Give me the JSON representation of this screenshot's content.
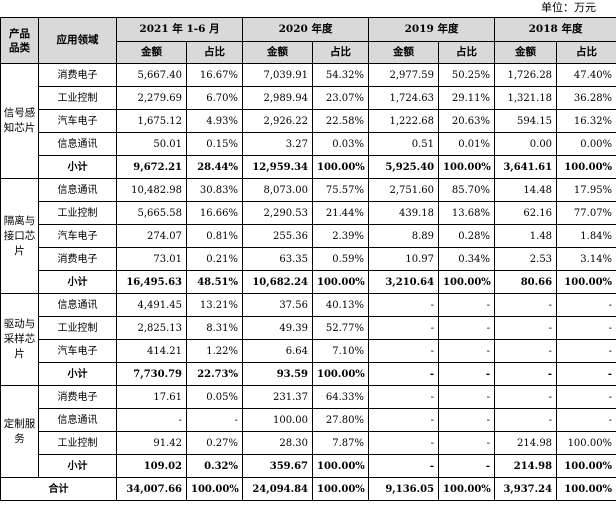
{
  "unit_label": "单位：万元",
  "headers": {
    "category": "产品品类",
    "field": "应用领域",
    "periods": [
      "2021 年 1-6 月",
      "2020 年度",
      "2019 年度",
      "2018 年度"
    ],
    "amount": "金额",
    "ratio": "占比"
  },
  "groups": [
    {
      "category": "信号感知芯片",
      "rows": [
        {
          "field": "消费电子",
          "values": [
            "5,667.40",
            "16.67%",
            "7,039.91",
            "54.32%",
            "2,977.59",
            "50.25%",
            "1,726.28",
            "47.40%"
          ]
        },
        {
          "field": "工业控制",
          "values": [
            "2,279.69",
            "6.70%",
            "2,989.94",
            "23.07%",
            "1,724.63",
            "29.11%",
            "1,321.18",
            "36.28%"
          ]
        },
        {
          "field": "汽车电子",
          "values": [
            "1,675.12",
            "4.93%",
            "2,926.22",
            "22.58%",
            "1,222.68",
            "20.63%",
            "594.15",
            "16.32%"
          ]
        },
        {
          "field": "信息通讯",
          "values": [
            "50.01",
            "0.15%",
            "3.27",
            "0.03%",
            "0.51",
            "0.01%",
            "0.00",
            "0.00%"
          ]
        }
      ],
      "subtotal": {
        "field": "小计",
        "values": [
          "9,672.21",
          "28.44%",
          "12,959.34",
          "100.00%",
          "5,925.40",
          "100.00%",
          "3,641.61",
          "100.00%"
        ]
      }
    },
    {
      "category": "隔离与接口芯片",
      "rows": [
        {
          "field": "信息通讯",
          "values": [
            "10,482.98",
            "30.83%",
            "8,073.00",
            "75.57%",
            "2,751.60",
            "85.70%",
            "14.48",
            "17.95%"
          ]
        },
        {
          "field": "工业控制",
          "values": [
            "5,665.58",
            "16.66%",
            "2,290.53",
            "21.44%",
            "439.18",
            "13.68%",
            "62.16",
            "77.07%"
          ]
        },
        {
          "field": "汽车电子",
          "values": [
            "274.07",
            "0.81%",
            "255.36",
            "2.39%",
            "8.89",
            "0.28%",
            "1.48",
            "1.84%"
          ]
        },
        {
          "field": "消费电子",
          "values": [
            "73.01",
            "0.21%",
            "63.35",
            "0.59%",
            "10.97",
            "0.34%",
            "2.53",
            "3.14%"
          ]
        }
      ],
      "subtotal": {
        "field": "小计",
        "values": [
          "16,495.63",
          "48.51%",
          "10,682.24",
          "100.00%",
          "3,210.64",
          "100.00%",
          "80.66",
          "100.00%"
        ]
      }
    },
    {
      "category": "驱动与采样芯片",
      "rows": [
        {
          "field": "信息通讯",
          "values": [
            "4,491.45",
            "13.21%",
            "37.56",
            "40.13%",
            "-",
            "-",
            "-",
            "-"
          ]
        },
        {
          "field": "工业控制",
          "values": [
            "2,825.13",
            "8.31%",
            "49.39",
            "52.77%",
            "-",
            "-",
            "-",
            "-"
          ]
        },
        {
          "field": "汽车电子",
          "values": [
            "414.21",
            "1.22%",
            "6.64",
            "7.10%",
            "-",
            "-",
            "-",
            "-"
          ]
        }
      ],
      "subtotal": {
        "field": "小计",
        "values": [
          "7,730.79",
          "22.73%",
          "93.59",
          "100.00%",
          "-",
          "-",
          "-",
          "-"
        ]
      }
    },
    {
      "category": "定制服务",
      "rows": [
        {
          "field": "消费电子",
          "values": [
            "17.61",
            "0.05%",
            "231.37",
            "64.33%",
            "-",
            "-",
            "-",
            "-"
          ]
        },
        {
          "field": "信息通讯",
          "values": [
            "-",
            "-",
            "100.00",
            "27.80%",
            "-",
            "-",
            "-",
            "-"
          ]
        },
        {
          "field": "工业控制",
          "values": [
            "91.42",
            "0.27%",
            "28.30",
            "7.87%",
            "-",
            "-",
            "214.98",
            "100.00%"
          ]
        }
      ],
      "subtotal": {
        "field": "小计",
        "values": [
          "109.02",
          "0.32%",
          "359.67",
          "100.00%",
          "-",
          "-",
          "214.98",
          "100.00%"
        ]
      }
    }
  ],
  "total": {
    "label": "合计",
    "values": [
      "34,007.66",
      "100.00%",
      "24,094.84",
      "100.00%",
      "9,136.05",
      "100.00%",
      "3,937.24",
      "100.00%"
    ]
  }
}
